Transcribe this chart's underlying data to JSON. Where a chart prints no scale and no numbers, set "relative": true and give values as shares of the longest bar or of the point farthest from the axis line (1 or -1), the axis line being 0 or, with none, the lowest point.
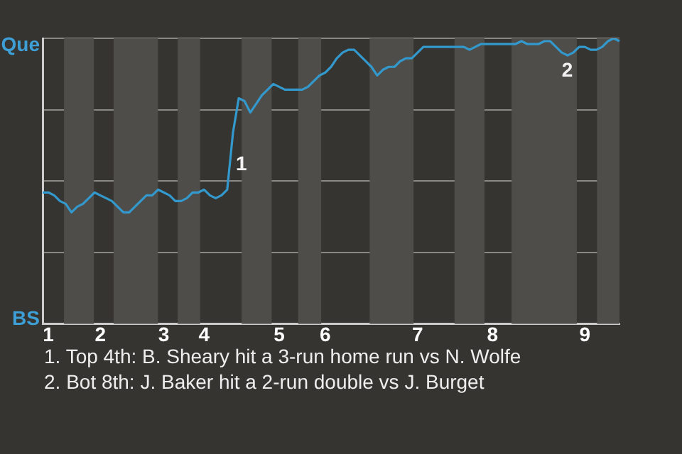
{
  "chart_data": {
    "type": "line",
    "relative": true,
    "categories": [
      null,
      "1",
      null,
      null,
      null,
      null,
      null,
      null,
      null,
      null,
      "2",
      null,
      null,
      null,
      null,
      null,
      null,
      null,
      null,
      null,
      null,
      "3",
      null,
      null,
      null,
      null,
      null,
      null,
      "4",
      null,
      null,
      null,
      null,
      null,
      null,
      null,
      null,
      null,
      null,
      null,
      null,
      "5",
      null,
      null,
      null,
      null,
      null,
      null,
      null,
      "6",
      null,
      null,
      null,
      null,
      null,
      null,
      null,
      null,
      null,
      null,
      null,
      null,
      null,
      null,
      null,
      "7",
      null,
      null,
      null,
      null,
      null,
      null,
      null,
      null,
      null,
      null,
      null,
      null,
      "8",
      null,
      null,
      null,
      null,
      null,
      null,
      null,
      null,
      null,
      null,
      null,
      null,
      null,
      null,
      null,
      "9",
      null,
      null,
      null,
      null,
      null,
      null
    ],
    "series": [
      {
        "color": "#3399cc",
        "values": [
          0.46,
          0.46,
          0.45,
          0.43,
          0.42,
          0.39,
          0.41,
          0.42,
          0.44,
          0.46,
          0.45,
          0.44,
          0.43,
          0.41,
          0.39,
          0.39,
          0.41,
          0.43,
          0.45,
          0.45,
          0.47,
          0.46,
          0.45,
          0.43,
          0.43,
          0.44,
          0.46,
          0.46,
          0.47,
          0.45,
          0.44,
          0.45,
          0.47,
          0.67,
          0.79,
          0.78,
          0.74,
          0.77,
          0.8,
          0.82,
          0.84,
          0.83,
          0.82,
          0.82,
          0.82,
          0.82,
          0.83,
          0.85,
          0.87,
          0.88,
          0.9,
          0.93,
          0.95,
          0.96,
          0.96,
          0.94,
          0.92,
          0.9,
          0.87,
          0.89,
          0.9,
          0.9,
          0.92,
          0.93,
          0.93,
          0.95,
          0.97,
          0.97,
          0.97,
          0.97,
          0.97,
          0.97,
          0.97,
          0.97,
          0.96,
          0.97,
          0.98,
          0.98,
          0.98,
          0.98,
          0.98,
          0.98,
          0.98,
          0.99,
          0.98,
          0.98,
          0.98,
          0.99,
          0.99,
          0.97,
          0.95,
          0.94,
          0.95,
          0.97,
          0.97,
          0.96,
          0.96,
          0.97,
          0.99,
          1,
          0.99
        ]
      }
    ],
    "grid": "y",
    "marker": "none",
    "line_style": "solid",
    "annotations": [
      "Que",
      "BS",
      "1",
      "2",
      "1. Top 4th: B. Sheary hit a 3-run home run vs N. Wolfe",
      "2. Bot 8th: J. Baker hit a 2-run double vs J. Burget"
    ]
  }
}
